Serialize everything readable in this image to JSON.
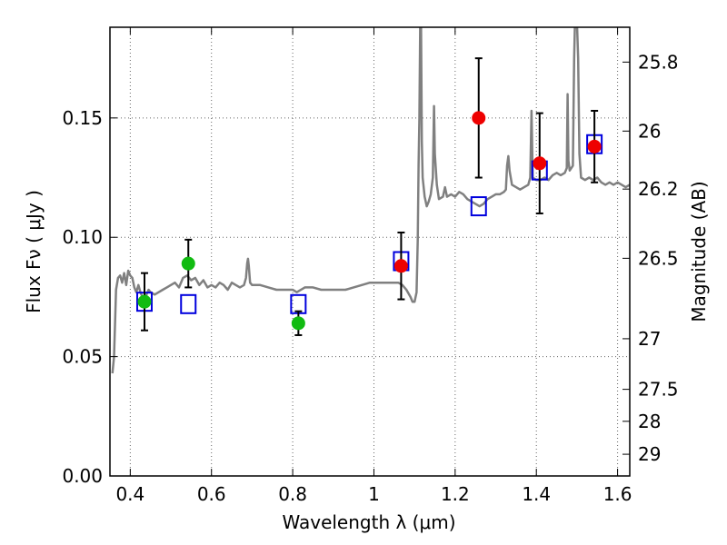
{
  "chart_data": {
    "type": "scatter",
    "xlabel": "Wavelength  λ (μm)",
    "ylabel": "Flux  Fν  ( μJy )",
    "ylabel_right": "Magnitude (AB)",
    "xlim": [
      0.35,
      1.63
    ],
    "ylim": [
      0.0,
      0.188
    ],
    "grid": true,
    "x_ticks": [
      0.4,
      0.6,
      0.8,
      1.0,
      1.2,
      1.4,
      1.6
    ],
    "x_tick_labels": [
      "0.4",
      "0.6",
      "0.8",
      "1",
      "1.2",
      "1.4",
      "1.6"
    ],
    "y_ticks": [
      0.0,
      0.05,
      0.1,
      0.15
    ],
    "y_tick_labels": [
      "0.00",
      "0.05",
      "0.10",
      "0.15"
    ],
    "right_ticks": [
      {
        "label": "25.8",
        "flux": 0.1734
      },
      {
        "label": "26",
        "flux": 0.1445
      },
      {
        "label": "26.2",
        "flux": 0.1202
      },
      {
        "label": "26.5",
        "flux": 0.0912
      },
      {
        "label": "27",
        "flux": 0.0575
      },
      {
        "label": "27.5",
        "flux": 0.0363
      },
      {
        "label": "28",
        "flux": 0.0229
      },
      {
        "label": "29",
        "flux": 0.0091
      }
    ],
    "colors": {
      "model": "#808080",
      "green": "#11bb11",
      "red": "#ee0000",
      "square": "#0000dd",
      "errorbar": "#000000",
      "grid": "#666666"
    },
    "series": [
      {
        "values": [
          [
            0.356,
            0.043
          ],
          [
            0.36,
            0.05
          ],
          [
            0.365,
            0.078
          ],
          [
            0.37,
            0.083
          ],
          [
            0.375,
            0.084
          ],
          [
            0.38,
            0.081
          ],
          [
            0.385,
            0.085
          ],
          [
            0.39,
            0.08
          ],
          [
            0.395,
            0.086
          ],
          [
            0.4,
            0.084
          ],
          [
            0.405,
            0.083
          ],
          [
            0.41,
            0.079
          ],
          [
            0.415,
            0.077
          ],
          [
            0.42,
            0.08
          ],
          [
            0.425,
            0.077
          ],
          [
            0.43,
            0.075
          ],
          [
            0.435,
            0.073
          ],
          [
            0.44,
            0.076
          ],
          [
            0.445,
            0.078
          ],
          [
            0.45,
            0.077
          ],
          [
            0.46,
            0.076
          ],
          [
            0.47,
            0.077
          ],
          [
            0.48,
            0.078
          ],
          [
            0.49,
            0.079
          ],
          [
            0.5,
            0.08
          ],
          [
            0.51,
            0.081
          ],
          [
            0.52,
            0.079
          ],
          [
            0.53,
            0.083
          ],
          [
            0.54,
            0.084
          ],
          [
            0.55,
            0.082
          ],
          [
            0.56,
            0.083
          ],
          [
            0.57,
            0.08
          ],
          [
            0.58,
            0.082
          ],
          [
            0.59,
            0.079
          ],
          [
            0.6,
            0.08
          ],
          [
            0.61,
            0.079
          ],
          [
            0.62,
            0.081
          ],
          [
            0.63,
            0.08
          ],
          [
            0.64,
            0.078
          ],
          [
            0.65,
            0.081
          ],
          [
            0.66,
            0.08
          ],
          [
            0.67,
            0.079
          ],
          [
            0.68,
            0.08
          ],
          [
            0.685,
            0.083
          ],
          [
            0.688,
            0.089
          ],
          [
            0.69,
            0.091
          ],
          [
            0.692,
            0.088
          ],
          [
            0.695,
            0.081
          ],
          [
            0.7,
            0.08
          ],
          [
            0.72,
            0.08
          ],
          [
            0.74,
            0.079
          ],
          [
            0.76,
            0.078
          ],
          [
            0.78,
            0.078
          ],
          [
            0.8,
            0.078
          ],
          [
            0.81,
            0.077
          ],
          [
            0.83,
            0.079
          ],
          [
            0.85,
            0.079
          ],
          [
            0.87,
            0.078
          ],
          [
            0.89,
            0.078
          ],
          [
            0.91,
            0.078
          ],
          [
            0.93,
            0.078
          ],
          [
            0.95,
            0.079
          ],
          [
            0.97,
            0.08
          ],
          [
            0.99,
            0.081
          ],
          [
            1.01,
            0.081
          ],
          [
            1.03,
            0.081
          ],
          [
            1.05,
            0.081
          ],
          [
            1.06,
            0.081
          ],
          [
            1.07,
            0.08
          ],
          [
            1.08,
            0.078
          ],
          [
            1.09,
            0.075
          ],
          [
            1.095,
            0.073
          ],
          [
            1.1,
            0.073
          ],
          [
            1.105,
            0.077
          ],
          [
            1.108,
            0.099
          ],
          [
            1.11,
            0.13
          ],
          [
            1.112,
            0.15
          ],
          [
            1.114,
            0.19
          ],
          [
            1.116,
            0.19
          ],
          [
            1.118,
            0.14
          ],
          [
            1.12,
            0.125
          ],
          [
            1.125,
            0.117
          ],
          [
            1.13,
            0.113
          ],
          [
            1.135,
            0.115
          ],
          [
            1.14,
            0.118
          ],
          [
            1.145,
            0.125
          ],
          [
            1.148,
            0.155
          ],
          [
            1.15,
            0.135
          ],
          [
            1.155,
            0.122
          ],
          [
            1.16,
            0.116
          ],
          [
            1.17,
            0.117
          ],
          [
            1.175,
            0.121
          ],
          [
            1.18,
            0.117
          ],
          [
            1.19,
            0.118
          ],
          [
            1.2,
            0.117
          ],
          [
            1.21,
            0.119
          ],
          [
            1.22,
            0.118
          ],
          [
            1.23,
            0.116
          ],
          [
            1.24,
            0.115
          ],
          [
            1.25,
            0.114
          ],
          [
            1.26,
            0.113
          ],
          [
            1.27,
            0.114
          ],
          [
            1.28,
            0.116
          ],
          [
            1.29,
            0.117
          ],
          [
            1.3,
            0.118
          ],
          [
            1.31,
            0.118
          ],
          [
            1.32,
            0.119
          ],
          [
            1.325,
            0.12
          ],
          [
            1.328,
            0.13
          ],
          [
            1.331,
            0.134
          ],
          [
            1.334,
            0.128
          ],
          [
            1.34,
            0.122
          ],
          [
            1.35,
            0.121
          ],
          [
            1.36,
            0.12
          ],
          [
            1.37,
            0.121
          ],
          [
            1.38,
            0.122
          ],
          [
            1.385,
            0.125
          ],
          [
            1.388,
            0.153
          ],
          [
            1.391,
            0.125
          ],
          [
            1.4,
            0.124
          ],
          [
            1.41,
            0.124
          ],
          [
            1.42,
            0.125
          ],
          [
            1.43,
            0.124
          ],
          [
            1.44,
            0.126
          ],
          [
            1.45,
            0.127
          ],
          [
            1.46,
            0.126
          ],
          [
            1.47,
            0.127
          ],
          [
            1.475,
            0.129
          ],
          [
            1.477,
            0.16
          ],
          [
            1.479,
            0.132
          ],
          [
            1.482,
            0.128
          ],
          [
            1.49,
            0.13
          ],
          [
            1.493,
            0.175
          ],
          [
            1.495,
            0.19
          ],
          [
            1.5,
            0.19
          ],
          [
            1.503,
            0.175
          ],
          [
            1.506,
            0.135
          ],
          [
            1.51,
            0.125
          ],
          [
            1.52,
            0.124
          ],
          [
            1.53,
            0.125
          ],
          [
            1.54,
            0.124
          ],
          [
            1.55,
            0.125
          ],
          [
            1.56,
            0.123
          ],
          [
            1.57,
            0.122
          ],
          [
            1.58,
            0.123
          ],
          [
            1.59,
            0.122
          ],
          [
            1.6,
            0.123
          ],
          [
            1.61,
            0.122
          ],
          [
            1.62,
            0.121
          ],
          [
            1.63,
            0.122
          ]
        ]
      },
      {
        "points": [
          {
            "x": 0.435,
            "y": 0.073,
            "err": 0.012
          },
          {
            "x": 0.543,
            "y": 0.089,
            "err": 0.01
          },
          {
            "x": 0.814,
            "y": 0.064,
            "err": 0.005
          }
        ]
      },
      {
        "points": [
          {
            "x": 1.067,
            "y": 0.088,
            "err": 0.014
          },
          {
            "x": 1.258,
            "y": 0.15,
            "err": 0.025
          },
          {
            "x": 1.408,
            "y": 0.131,
            "err": 0.021
          },
          {
            "x": 1.543,
            "y": 0.138,
            "err": 0.015
          }
        ]
      },
      {
        "points": [
          {
            "x": 0.435,
            "y": 0.073
          },
          {
            "x": 0.543,
            "y": 0.072
          },
          {
            "x": 0.814,
            "y": 0.072
          },
          {
            "x": 1.067,
            "y": 0.09
          },
          {
            "x": 1.258,
            "y": 0.113
          },
          {
            "x": 1.408,
            "y": 0.128
          },
          {
            "x": 1.543,
            "y": 0.139
          }
        ]
      }
    ]
  }
}
